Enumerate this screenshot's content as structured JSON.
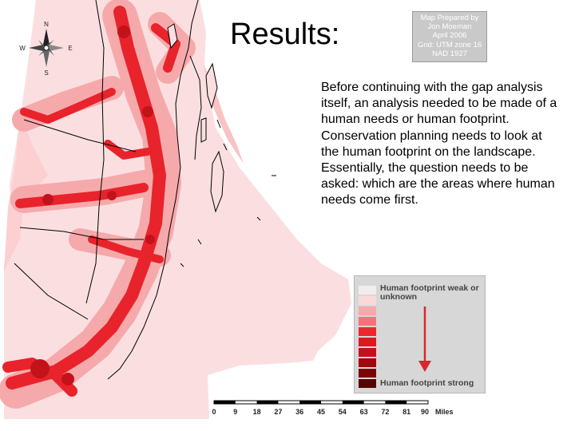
{
  "title": "Results:",
  "credit": [
    "Map Prepared by",
    "Jon Moeman",
    "April 2006",
    "Grid: UTM zone 16",
    "NAD 1927"
  ],
  "compass": {
    "n": "N",
    "s": "S",
    "e": "E",
    "w": "W"
  },
  "body_text": "Before continuing with the gap analysis itself, an analysis needed to be made of a human needs or human footprint. Conservation planning needs to look at the human footprint on the landscape. Essentially, the question needs to be asked: which are the areas where human needs come first.",
  "legend": {
    "top_label": "Human footprint weak or unknown",
    "bottom_label": "Human footprint strong",
    "classes": [
      "#f2eded",
      "#fbd9da",
      "#f6a9ab",
      "#f2737a",
      "#ec2730",
      "#de1921",
      "#c4121a",
      "#a1080e",
      "#7b0308",
      "#570204"
    ],
    "arrow_color": "#d42a2a"
  },
  "scale_bar": {
    "ticks": [
      "0",
      "9",
      "18",
      "27",
      "36",
      "45",
      "54",
      "63",
      "72",
      "81",
      "90"
    ],
    "unit": "Miles"
  },
  "map_colors": {
    "base": "#fbdfe0",
    "medium": "#f6a9ab",
    "strong": "#e8232b",
    "outline": "#000000"
  }
}
